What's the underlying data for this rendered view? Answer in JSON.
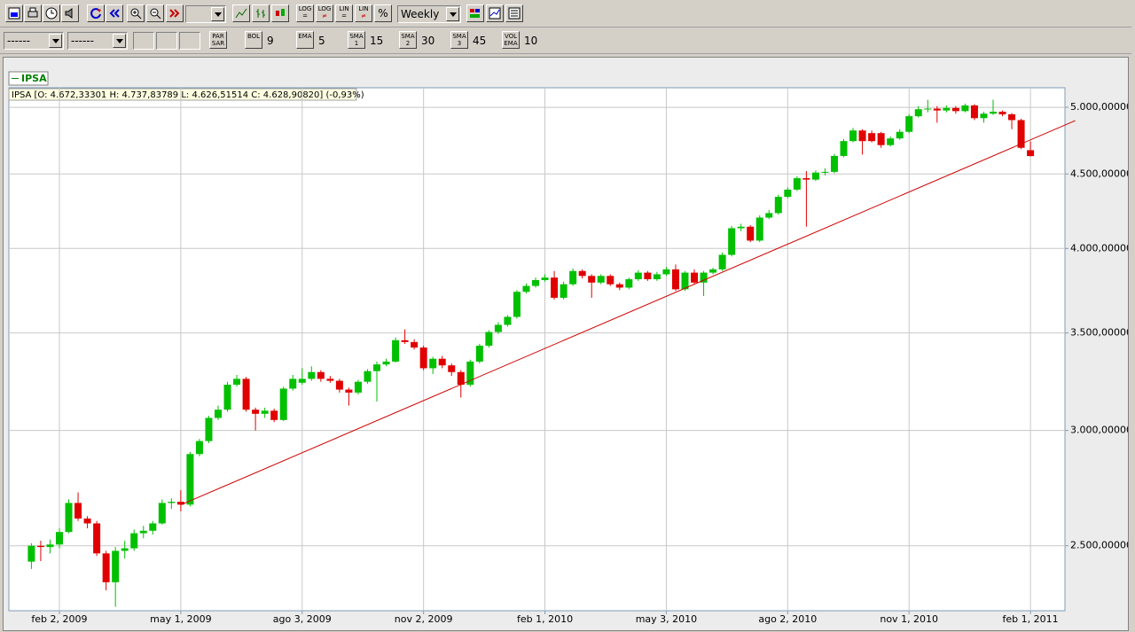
{
  "toolbar": {
    "period": "Weekly",
    "scale_buttons": [
      "LOG",
      "LOG",
      "LIN",
      "LIN",
      "%"
    ],
    "selectors": [
      "------",
      "------"
    ],
    "indicators": [
      {
        "label": "PAR SAR"
      },
      {
        "label": "BOL",
        "value": 9
      },
      {
        "label": "EMA",
        "value": 5
      },
      {
        "label": "SMA 1",
        "value": 15
      },
      {
        "label": "SMA 2",
        "value": 30
      },
      {
        "label": "SMA 3",
        "value": 45
      },
      {
        "label": "VOL EMA",
        "value": 10
      }
    ]
  },
  "chart_data": {
    "type": "candlestick",
    "name": "IPSA",
    "info": "IPSA [O: 4.672,33301  H: 4.737,83789  L: 4.626,51514  C: 4.628,90820] (-0,93%)",
    "categories": [
      null,
      null,
      null,
      "feb 2, 2009",
      null,
      null,
      null,
      null,
      null,
      null,
      null,
      null,
      null,
      null,
      null,
      null,
      "may 1, 2009",
      null,
      null,
      null,
      null,
      null,
      null,
      null,
      null,
      null,
      null,
      null,
      null,
      "ago 3, 2009",
      null,
      null,
      null,
      null,
      null,
      null,
      null,
      null,
      null,
      null,
      null,
      null,
      "nov 2, 2009",
      null,
      null,
      null,
      null,
      null,
      null,
      null,
      null,
      null,
      null,
      null,
      null,
      "feb 1, 2010",
      null,
      null,
      null,
      null,
      null,
      null,
      null,
      null,
      null,
      null,
      null,
      null,
      "may 3, 2010",
      null,
      null,
      null,
      null,
      null,
      null,
      null,
      null,
      null,
      null,
      null,
      null,
      "ago 2, 2010",
      null,
      null,
      null,
      null,
      null,
      null,
      null,
      null,
      null,
      null,
      null,
      null,
      "nov 1, 2010",
      null,
      null,
      null,
      null,
      null,
      null,
      null,
      null,
      null,
      null,
      null,
      null,
      "feb 1, 2011"
    ],
    "open": [
      2438,
      2500,
      2495,
      2505,
      2555,
      2675,
      2610,
      2590,
      2470,
      2360,
      2480,
      2490,
      2550,
      2560,
      2590,
      2675,
      2680,
      2668,
      2890,
      2950,
      3060,
      3100,
      3225,
      3255,
      3100,
      3080,
      3095,
      3050,
      3205,
      3235,
      3255,
      3290,
      3255,
      3245,
      3200,
      3185,
      3240,
      3295,
      3330,
      3345,
      3460,
      3450,
      3420,
      3310,
      3360,
      3325,
      3290,
      3225,
      3345,
      3430,
      3505,
      3545,
      3590,
      3735,
      3770,
      3805,
      3820,
      3700,
      3780,
      3860,
      3830,
      3790,
      3830,
      3780,
      3760,
      3810,
      3850,
      3810,
      3840,
      3870,
      3750,
      3850,
      3790,
      3850,
      3870,
      3960,
      4130,
      4140,
      4050,
      4200,
      4230,
      4340,
      4390,
      4470,
      4460,
      4510,
      4515,
      4630,
      4740,
      4820,
      4800,
      4800,
      4710,
      4760,
      4810,
      4930,
      4985,
      4990,
      4975,
      4995,
      4970,
      5015,
      4915,
      4950,
      4965,
      4945,
      4900,
      4672.33301
    ],
    "high": [
      2510,
      2520,
      2525,
      2570,
      2690,
      2720,
      2620,
      2600,
      2480,
      2495,
      2520,
      2565,
      2580,
      2600,
      2690,
      2695,
      2730,
      2900,
      2960,
      3070,
      3120,
      3240,
      3275,
      3265,
      3110,
      3110,
      3105,
      3215,
      3275,
      3310,
      3320,
      3300,
      3270,
      3255,
      3210,
      3250,
      3305,
      3345,
      3360,
      3475,
      3520,
      3465,
      3430,
      3370,
      3375,
      3335,
      3300,
      3355,
      3440,
      3515,
      3560,
      3600,
      3745,
      3785,
      3820,
      3840,
      3860,
      3795,
      3875,
      3870,
      3840,
      3840,
      3840,
      3790,
      3820,
      3865,
      3860,
      3855,
      3885,
      3900,
      3860,
      3870,
      3860,
      3880,
      3975,
      4145,
      4160,
      4150,
      4215,
      4250,
      4355,
      4405,
      4485,
      4520,
      4525,
      4540,
      4645,
      4755,
      4840,
      4830,
      4820,
      4810,
      4775,
      4830,
      4945,
      5010,
      5060,
      5010,
      5015,
      5010,
      5030,
      5025,
      4965,
      5060,
      4975,
      4955,
      4910,
      4737.83789
    ],
    "low": [
      2410,
      2440,
      2470,
      2490,
      2550,
      2600,
      2570,
      2460,
      2330,
      2270,
      2450,
      2480,
      2530,
      2545,
      2585,
      2650,
      2640,
      2660,
      2880,
      2940,
      3050,
      3090,
      3215,
      3090,
      3000,
      3060,
      3040,
      3045,
      3195,
      3225,
      3245,
      3240,
      3235,
      3185,
      3120,
      3175,
      3230,
      3140,
      3320,
      3340,
      3440,
      3410,
      3300,
      3280,
      3310,
      3270,
      3160,
      3215,
      3335,
      3420,
      3495,
      3535,
      3580,
      3725,
      3760,
      3795,
      3690,
      3690,
      3770,
      3815,
      3700,
      3780,
      3770,
      3745,
      3750,
      3800,
      3800,
      3800,
      3830,
      3740,
      3740,
      3780,
      3710,
      3840,
      3860,
      3950,
      4110,
      4040,
      4040,
      4190,
      4220,
      4330,
      4380,
      4140,
      4450,
      4490,
      4505,
      4620,
      4730,
      4640,
      4730,
      4690,
      4700,
      4750,
      4800,
      4920,
      4960,
      4880,
      4960,
      4950,
      4960,
      4900,
      4880,
      4940,
      4930,
      4830,
      4680,
      4626.51514
    ],
    "close": [
      2500,
      2495,
      2505,
      2555,
      2675,
      2610,
      2590,
      2470,
      2360,
      2480,
      2490,
      2550,
      2560,
      2590,
      2675,
      2680,
      2668,
      2890,
      2950,
      3060,
      3100,
      3225,
      3255,
      3100,
      3080,
      3095,
      3050,
      3205,
      3255,
      3255,
      3290,
      3255,
      3245,
      3200,
      3185,
      3240,
      3295,
      3330,
      3345,
      3460,
      3450,
      3420,
      3310,
      3360,
      3325,
      3290,
      3225,
      3345,
      3430,
      3505,
      3545,
      3590,
      3735,
      3770,
      3805,
      3820,
      3700,
      3780,
      3860,
      3830,
      3790,
      3830,
      3780,
      3760,
      3810,
      3850,
      3810,
      3840,
      3870,
      3750,
      3850,
      3790,
      3850,
      3870,
      3960,
      4130,
      4140,
      4050,
      4200,
      4230,
      4340,
      4390,
      4470,
      4460,
      4510,
      4515,
      4630,
      4740,
      4820,
      4740,
      4740,
      4710,
      4760,
      4810,
      4930,
      4985,
      4990,
      4975,
      4995,
      4970,
      5015,
      4915,
      4950,
      4965,
      4945,
      4900,
      4690,
      4628.9082
    ],
    "up_color": "#00c000",
    "down_color": "#e00000",
    "legend_color": "#008000",
    "trendline": {
      "color": "#d00000",
      "x": [
        16,
        111.8
      ],
      "values": [
        2667,
        4896
      ]
    },
    "log_scale": true,
    "grid": true,
    "ylim": [
      2256,
      5157
    ],
    "yticks": [
      {
        "value": 2500,
        "label": "2.500,00000"
      },
      {
        "value": 3000,
        "label": "3.000,00000"
      },
      {
        "value": 3500,
        "label": "3.500,00000"
      },
      {
        "value": 4000,
        "label": "4.000,00000"
      },
      {
        "value": 4500,
        "label": "4.500,00000"
      },
      {
        "value": 5000,
        "label": "5.000,00000"
      }
    ]
  }
}
